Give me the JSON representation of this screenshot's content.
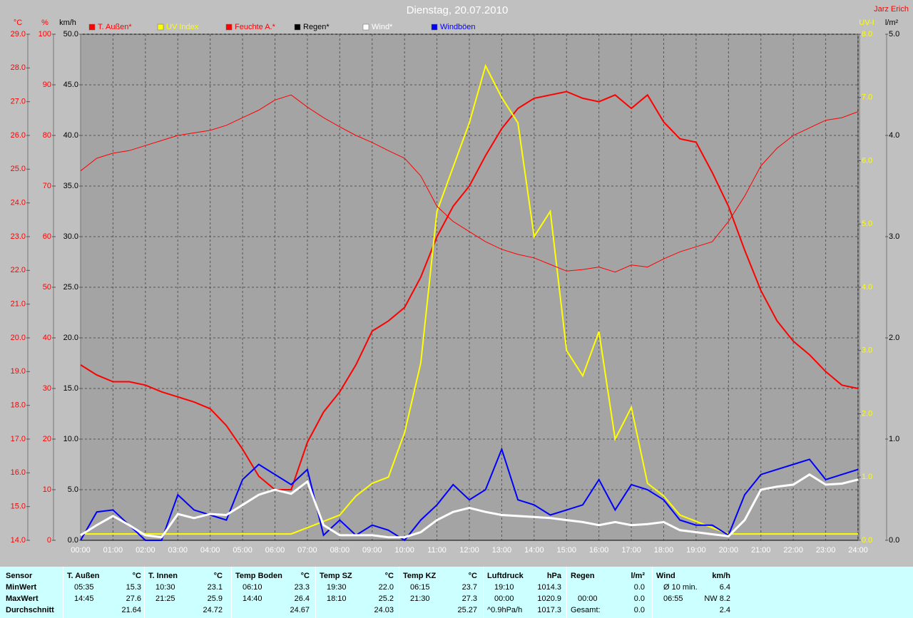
{
  "header": {
    "title": "Dienstag, 20.07.2010",
    "author": "Jarz Erich"
  },
  "chart_data": {
    "type": "line",
    "x": [
      0,
      0.5,
      1,
      1.5,
      2,
      2.5,
      3,
      3.5,
      4,
      4.5,
      5,
      5.5,
      6,
      6.5,
      7,
      7.5,
      8,
      8.5,
      9,
      9.5,
      10,
      10.5,
      11,
      11.5,
      12,
      12.5,
      13,
      13.5,
      14,
      14.5,
      15,
      15.5,
      16,
      16.5,
      17,
      17.5,
      18,
      18.5,
      19,
      19.5,
      20,
      20.5,
      21,
      21.5,
      22,
      22.5,
      23,
      23.5,
      24
    ],
    "xlim": [
      0,
      24
    ],
    "xticks": [
      {
        "value": 0,
        "label": "00:00"
      },
      {
        "value": 1,
        "label": "01:00"
      },
      {
        "value": 2,
        "label": "02:00"
      },
      {
        "value": 3,
        "label": "03:00"
      },
      {
        "value": 4,
        "label": "04:00"
      },
      {
        "value": 5,
        "label": "05:00"
      },
      {
        "value": 6,
        "label": "06:00"
      },
      {
        "value": 7,
        "label": "07:00"
      },
      {
        "value": 8,
        "label": "08:00"
      },
      {
        "value": 9,
        "label": "09:00"
      },
      {
        "value": 10,
        "label": "10:00"
      },
      {
        "value": 11,
        "label": "11:00"
      },
      {
        "value": 12,
        "label": "12:00"
      },
      {
        "value": 13,
        "label": "13:00"
      },
      {
        "value": 14,
        "label": "14:00"
      },
      {
        "value": 15,
        "label": "15:00"
      },
      {
        "value": 16,
        "label": "16:00"
      },
      {
        "value": 17,
        "label": "17:00"
      },
      {
        "value": 18,
        "label": "18:00"
      },
      {
        "value": 19,
        "label": "19:00"
      },
      {
        "value": 20,
        "label": "20:00"
      },
      {
        "value": 21,
        "label": "21:00"
      },
      {
        "value": 22,
        "label": "22:00"
      },
      {
        "value": 23,
        "label": "23:00"
      },
      {
        "value": 24,
        "label": "24:00"
      }
    ],
    "grid": true,
    "axes": {
      "temp": {
        "label": "°C",
        "color": "#ff0000",
        "side": "left",
        "lim": [
          14,
          29
        ],
        "ticks": [
          {
            "value": 14,
            "label": "14.0"
          },
          {
            "value": 15,
            "label": "15.0"
          },
          {
            "value": 16,
            "label": "16.0"
          },
          {
            "value": 17,
            "label": "17.0"
          },
          {
            "value": 18,
            "label": "18.0"
          },
          {
            "value": 19,
            "label": "19.0"
          },
          {
            "value": 20,
            "label": "20.0"
          },
          {
            "value": 21,
            "label": "21.0"
          },
          {
            "value": 22,
            "label": "22.0"
          },
          {
            "value": 23,
            "label": "23.0"
          },
          {
            "value": 24,
            "label": "24.0"
          },
          {
            "value": 25,
            "label": "25.0"
          },
          {
            "value": 26,
            "label": "26.0"
          },
          {
            "value": 27,
            "label": "27.0"
          },
          {
            "value": 28,
            "label": "28.0"
          },
          {
            "value": 29,
            "label": "29.0"
          }
        ]
      },
      "pct": {
        "label": "%",
        "color": "#ff0000",
        "side": "left",
        "lim": [
          0,
          100
        ],
        "ticks": [
          0,
          10,
          20,
          30,
          40,
          50,
          60,
          70,
          80,
          90,
          100
        ]
      },
      "kmh": {
        "label": "km/h",
        "color": "#000000",
        "side": "left",
        "grid": true,
        "lim": [
          0,
          50
        ],
        "ticks": [
          {
            "value": 0,
            "label": "0.0"
          },
          {
            "value": 5,
            "label": "5.0"
          },
          {
            "value": 10,
            "label": "10.0"
          },
          {
            "value": 15,
            "label": "15.0"
          },
          {
            "value": 20,
            "label": "20.0"
          },
          {
            "value": 25,
            "label": "25.0"
          },
          {
            "value": 30,
            "label": "30.0"
          },
          {
            "value": 35,
            "label": "35.0"
          },
          {
            "value": 40,
            "label": "40.0"
          },
          {
            "value": 45,
            "label": "45.0"
          },
          {
            "value": 50,
            "label": "50.0"
          }
        ]
      },
      "uv": {
        "label": "UV-I",
        "color": "#ffff00",
        "side": "right",
        "lim": [
          0,
          8
        ],
        "ticks": [
          {
            "value": 0,
            "label": "0.0"
          },
          {
            "value": 1,
            "label": "1.0"
          },
          {
            "value": 2,
            "label": "2.0"
          },
          {
            "value": 3,
            "label": "3.0"
          },
          {
            "value": 4,
            "label": "4.0"
          },
          {
            "value": 5,
            "label": "5.0"
          },
          {
            "value": 6,
            "label": "6.0"
          },
          {
            "value": 7,
            "label": "7.0"
          },
          {
            "value": 8,
            "label": "8.0"
          }
        ]
      },
      "rain": {
        "label": "l/m²",
        "color": "#000000",
        "side": "right",
        "lim": [
          0,
          5
        ],
        "ticks": [
          {
            "value": 0,
            "label": "0.0"
          },
          {
            "value": 1,
            "label": "1.0"
          },
          {
            "value": 2,
            "label": "2.0"
          },
          {
            "value": 3,
            "label": "3.0"
          },
          {
            "value": 4,
            "label": "4.0"
          },
          {
            "value": 5,
            "label": "5.0"
          }
        ]
      }
    },
    "series": [
      {
        "name": "T. Außen*",
        "color": "#ff0000",
        "axis": "temp",
        "width": 2,
        "values": [
          19.2,
          18.9,
          18.7,
          18.7,
          18.6,
          18.4,
          18.25,
          18.1,
          17.9,
          17.4,
          16.7,
          15.9,
          15.5,
          15.5,
          16.9,
          17.8,
          18.4,
          19.2,
          20.2,
          20.5,
          20.9,
          21.8,
          23.0,
          23.9,
          24.5,
          25.4,
          26.2,
          26.8,
          27.1,
          27.2,
          27.3,
          27.1,
          27.0,
          27.2,
          26.8,
          27.2,
          26.4,
          25.9,
          25.8,
          24.9,
          23.9,
          22.6,
          21.4,
          20.5,
          19.9,
          19.5,
          19.0,
          18.6,
          18.5
        ]
      },
      {
        "name": "UV Index",
        "color": "#ffff00",
        "axis": "uv",
        "width": 2,
        "values": [
          0.1,
          0.1,
          0.1,
          0.1,
          0.1,
          0.1,
          0.1,
          0.1,
          0.1,
          0.1,
          0.1,
          0.1,
          0.1,
          0.1,
          0.2,
          0.3,
          0.4,
          0.7,
          0.9,
          1.0,
          1.7,
          2.8,
          5.2,
          5.9,
          6.6,
          7.5,
          7.0,
          6.6,
          4.8,
          5.2,
          3.0,
          2.6,
          3.3,
          1.6,
          2.1,
          0.9,
          0.7,
          0.4,
          0.3,
          0.2,
          0.1,
          0.1,
          0.1,
          0.1,
          0.1,
          0.1,
          0.1,
          0.1,
          0.1
        ]
      },
      {
        "name": "Feuchte A.*",
        "color": "#ff0000",
        "axis": "pct",
        "width": 1,
        "values": [
          73,
          75.5,
          76.5,
          77,
          78,
          79,
          80,
          80.5,
          81,
          82,
          83.5,
          85,
          87,
          88,
          85.6,
          83.5,
          81.7,
          80,
          78.6,
          77,
          75.5,
          72,
          66,
          63,
          61,
          59,
          57.5,
          56.5,
          55.8,
          54.5,
          53.2,
          53.5,
          54,
          53,
          54.4,
          54,
          55.6,
          57,
          58,
          59,
          63,
          68,
          74,
          77.5,
          80,
          81.5,
          83,
          83.5,
          84.7
        ]
      },
      {
        "name": "Regen*",
        "color": "#000000",
        "axis": "rain",
        "width": 1,
        "values": [
          0,
          0,
          0,
          0,
          0,
          0,
          0,
          0,
          0,
          0,
          0,
          0,
          0,
          0,
          0,
          0,
          0,
          0,
          0,
          0,
          0,
          0,
          0,
          0,
          0,
          0,
          0,
          0,
          0,
          0,
          0,
          0,
          0,
          0,
          0,
          0,
          0,
          0,
          0,
          0,
          0,
          0,
          0,
          0,
          0,
          0,
          0,
          0,
          0
        ]
      },
      {
        "name": "Windböen",
        "color": "#0000ff",
        "axis": "kmh",
        "width": 2,
        "values": [
          0,
          2.8,
          3.0,
          1.5,
          0,
          0,
          4.5,
          3.0,
          2.5,
          2.0,
          6.0,
          7.5,
          6.5,
          5.5,
          7.0,
          0.5,
          2.0,
          0.5,
          1.5,
          1.0,
          0,
          2.0,
          3.5,
          5.5,
          4.0,
          5.0,
          9.0,
          4.0,
          3.5,
          2.5,
          3.0,
          3.5,
          6.0,
          3.0,
          5.5,
          5.0,
          4.0,
          2.0,
          1.5,
          1.5,
          0.5,
          4.5,
          6.5,
          7.0,
          7.5,
          8.0,
          6.0,
          6.5,
          7.0
        ]
      },
      {
        "name": "Wind*",
        "color": "#ffffff",
        "axis": "kmh",
        "width": 3,
        "values": [
          0.5,
          1.5,
          2.4,
          1.5,
          0.5,
          0.3,
          2.6,
          2.2,
          2.6,
          2.5,
          3.5,
          4.5,
          5.0,
          4.6,
          5.8,
          1.5,
          0.5,
          0.5,
          0.5,
          0.3,
          0.3,
          0.8,
          2.0,
          2.8,
          3.2,
          2.8,
          2.5,
          2.4,
          2.3,
          2.2,
          2.0,
          1.8,
          1.5,
          1.8,
          1.5,
          1.6,
          1.8,
          1.0,
          0.8,
          0.6,
          0.4,
          2.0,
          5.0,
          5.3,
          5.5,
          6.5,
          5.5,
          5.6,
          6.0
        ]
      }
    ],
    "legend_order": [
      0,
      1,
      2,
      3,
      5,
      4
    ]
  },
  "table": {
    "row_labels": [
      "Sensor",
      "MinWert",
      "MaxWert",
      "Durchschnitt"
    ],
    "groups": [
      {
        "name": "T. Außen",
        "unit": "°C",
        "min_time": "05:35",
        "min": "15.3",
        "max_time": "14:45",
        "max": "27.6",
        "avg": "21.64"
      },
      {
        "name": "T. Innen",
        "unit": "°C",
        "min_time": "10:30",
        "min": "23.1",
        "max_time": "21:25",
        "max": "25.9",
        "avg": "24.72"
      },
      {
        "name": "Temp Boden",
        "unit": "°C",
        "min_time": "06:10",
        "min": "23.3",
        "max_time": "14:40",
        "max": "26.4",
        "avg": "24.67"
      },
      {
        "name": "Temp SZ",
        "unit": "°C",
        "min_time": "19:30",
        "min": "22.0",
        "max_time": "18:10",
        "max": "25.2",
        "avg": "24.03"
      },
      {
        "name": "Temp KZ",
        "unit": "°C",
        "min_time": "06:15",
        "min": "23.7",
        "max_time": "21:30",
        "max": "27.3",
        "avg": "25.27"
      },
      {
        "name": "Luftdruck",
        "unit": "hPa",
        "min_time": "19:10",
        "min": "1014.3",
        "max_time": "00:00",
        "max": "1020.9",
        "avg_label": "^0.9hPa/h",
        "avg": "1017.3"
      },
      {
        "name": "Regen",
        "unit": "l/m²",
        "min": "0.0",
        "max_time": "00:00",
        "max": "0.0",
        "avg_label": "Gesamt:",
        "avg": "0.0"
      },
      {
        "name": "Wind",
        "unit": "km/h",
        "min_time": "Ø 10 min.",
        "min": "6.4",
        "max_time": "06:55",
        "max": "NW 8.2",
        "avg": "2.4"
      }
    ]
  }
}
